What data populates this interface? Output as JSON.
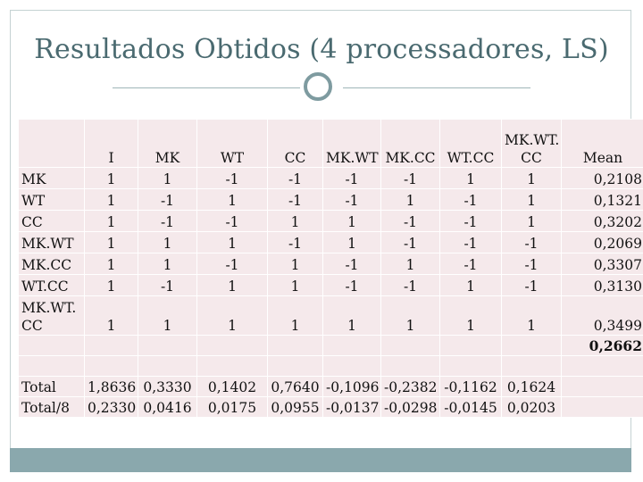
{
  "title": "Resultados Obtidos (4 processadores, LS)",
  "colors": {
    "accent": "#7e9ba0",
    "title": "#4a6a70",
    "cell": "#f5e9eb",
    "footer": "#8aa8ad"
  },
  "headers": [
    "I",
    "MK",
    "WT",
    "CC",
    "MK.WT",
    "MK.CC",
    "WT.CC",
    "MK.WT. CC",
    "Mean"
  ],
  "rows": [
    {
      "label": "MK",
      "values": [
        "1",
        "1",
        "-1",
        "-1",
        "-1",
        "-1",
        "1",
        "1"
      ],
      "mean": "0,2108"
    },
    {
      "label": "WT",
      "values": [
        "1",
        "-1",
        "1",
        "-1",
        "-1",
        "1",
        "-1",
        "1"
      ],
      "mean": "0,1321"
    },
    {
      "label": "CC",
      "values": [
        "1",
        "-1",
        "-1",
        "1",
        "1",
        "-1",
        "-1",
        "1"
      ],
      "mean": "0,3202"
    },
    {
      "label": "MK.WT",
      "values": [
        "1",
        "1",
        "1",
        "-1",
        "1",
        "-1",
        "-1",
        "-1"
      ],
      "mean": "0,2069"
    },
    {
      "label": "MK.CC",
      "values": [
        "1",
        "1",
        "-1",
        "1",
        "-1",
        "1",
        "-1",
        "-1"
      ],
      "mean": "0,3307"
    },
    {
      "label": "WT.CC",
      "values": [
        "1",
        "-1",
        "1",
        "1",
        "-1",
        "-1",
        "1",
        "-1"
      ],
      "mean": "0,3130"
    },
    {
      "label": "MK.WT. CC",
      "values": [
        "1",
        "1",
        "1",
        "1",
        "1",
        "1",
        "1",
        "1"
      ],
      "mean": "0,3499"
    }
  ],
  "overall_mean": "0,2662",
  "totals": [
    {
      "label": "Total",
      "values": [
        "1,8636",
        "0,3330",
        "0,1402",
        "0,7640",
        "-0,1096",
        "-0,2382",
        "-0,1162",
        "0,1624"
      ]
    },
    {
      "label": "Total/8",
      "values": [
        "0,2330",
        "0,0416",
        "0,0175",
        "0,0955",
        "-0,0137",
        "-0,0298",
        "-0,0145",
        "0,0203"
      ]
    }
  ]
}
